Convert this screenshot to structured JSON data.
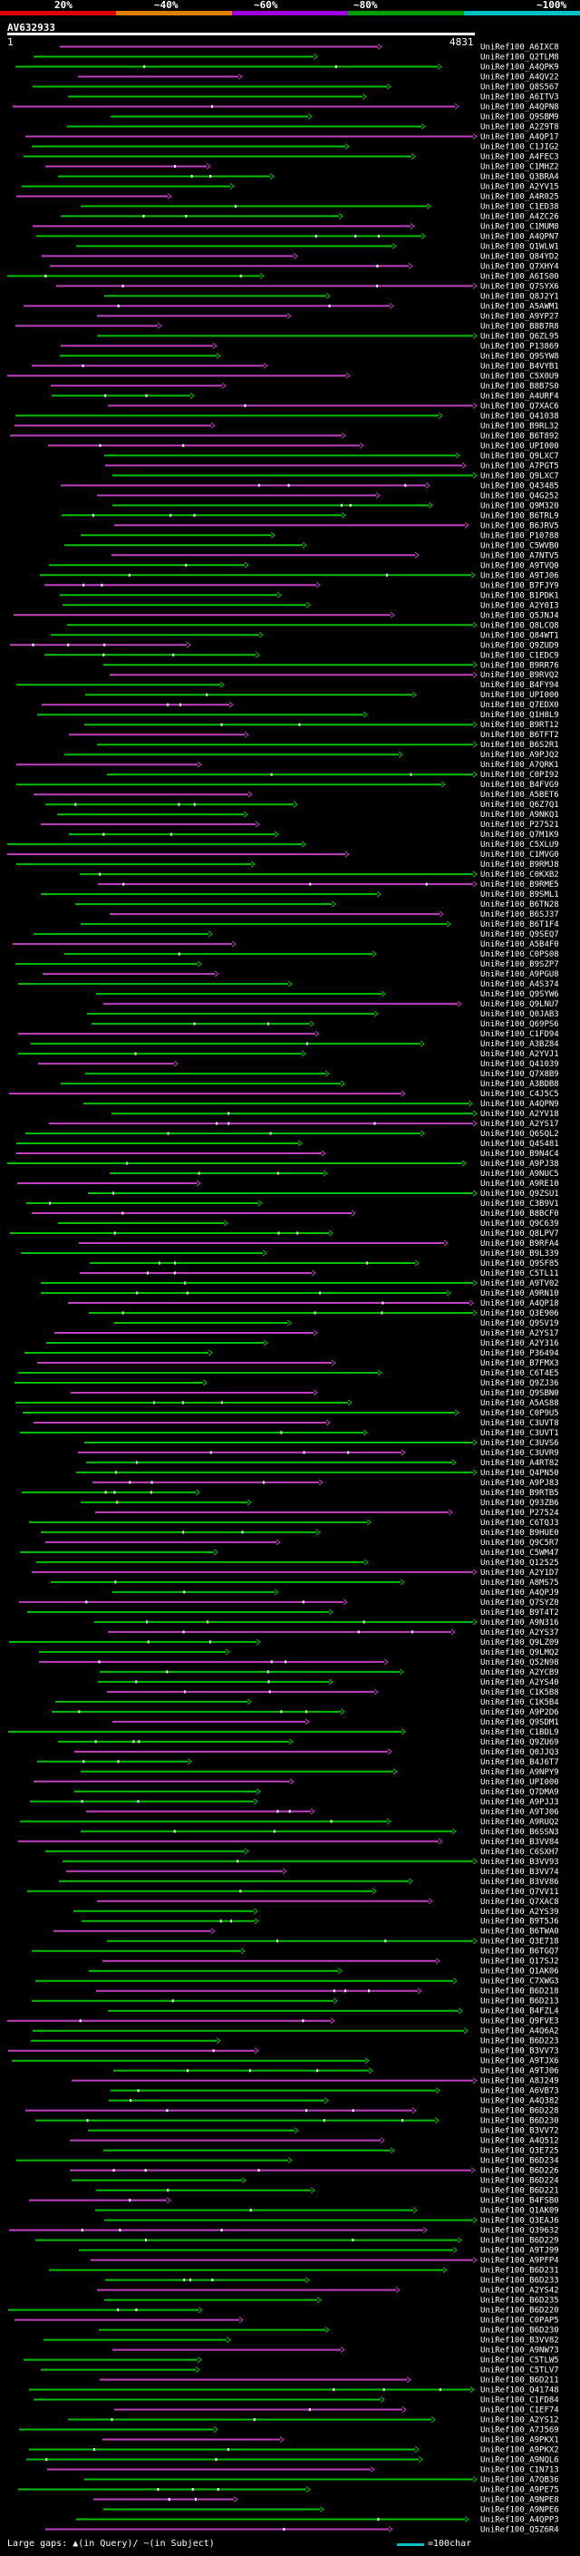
{
  "scale": {
    "labels": [
      "20%",
      "~40%",
      "~60%",
      "~80%",
      "~100%"
    ],
    "colors": [
      "#e00000",
      "#e08000",
      "#a000e0",
      "#00a000",
      "#00c0c0"
    ]
  },
  "query": {
    "id": "AV632933",
    "start": "1",
    "end": "4831"
  },
  "hit_ids": [
    "UniRef100_A6IXC8",
    "UniRef100_Q2TLM8",
    "UniRef100_A4QPK9",
    "UniRef100_A4QV22",
    "UniRef100_Q8S567",
    "UniRef100_A6ITV3",
    "UniRef100_A4QPN8",
    "UniRef100_Q9SBM9",
    "UniRef100_A2Z9T8",
    "UniRef100_A4QP17",
    "UniRef100_C1JIG2",
    "UniRef100_A4FEC3",
    "UniRef100_C1MHZ2",
    "UniRef100_Q3BRA4",
    "UniRef100_A2YV15",
    "UniRef100_A4R025",
    "UniRef100_C1ED38",
    "UniRef100_A4ZC26",
    "UniRef100_C1MUM8",
    "UniRef100_A4QPN7",
    "UniRef100_Q1WLW1",
    "UniRef100_Q84YD2",
    "UniRef100_Q7XHY4",
    "UniRef100_A6IS00",
    "UniRef100_Q7SYX6",
    "UniRef100_Q8J2Y1",
    "UniRef100_A5AWM1",
    "UniRef100_A9YP27",
    "UniRef100_B8B7R8",
    "UniRef100_Q6ZL95",
    "UniRef100_P13869",
    "UniRef100_Q9SYW8",
    "UniRef100_B4VYB1",
    "UniRef100_C5X0U9",
    "UniRef100_B8B7S0",
    "UniRef100_A4URF4",
    "UniRef100_Q7XAC6",
    "UniRef100_Q41038",
    "UniRef100_B9RL32",
    "UniRef100_B6T892",
    "UniRef100_UPI000",
    "UniRef100_Q9LXC7",
    "UniRef100_A7PGT5",
    "UniRef100_Q9LXC7",
    "UniRef100_Q43485",
    "UniRef100_Q4G252",
    "UniRef100_Q9M320",
    "UniRef100_B6TRL9",
    "UniRef100_B6JRV5",
    "UniRef100_P10788",
    "UniRef100_C5WVB0",
    "UniRef100_A7NTV5",
    "UniRef100_A9TVQ0",
    "UniRef100_A9TJ06",
    "UniRef100_B7FJY9",
    "UniRef100_B1PDK1",
    "UniRef100_A2Y0I3",
    "UniRef100_Q5JNJ4",
    "UniRef100_Q8LCQ8",
    "UniRef100_Q84WT1",
    "UniRef100_Q9ZUD9",
    "UniRef100_C1EDC9",
    "UniRef100_B9RR76",
    "UniRef100_B9RVQ2",
    "UniRef100_B4FY94",
    "UniRef100_UPI000",
    "UniRef100_Q7EDX0",
    "UniRef100_Q1H8L9",
    "UniRef100_B9RT12",
    "UniRef100_B6TFT2",
    "UniRef100_B6S2R1",
    "UniRef100_A9PJQ2",
    "UniRef100_A7QRK1",
    "UniRef100_C0PI92",
    "UniRef100_B4FVG9",
    "UniRef100_A5BET6",
    "UniRef100_Q6Z7Q1",
    "UniRef100_A9NKQ1",
    "UniRef100_P27521",
    "UniRef100_Q7M1K9",
    "UniRef100_C5XLU9",
    "UniRef100_C1MVG0",
    "UniRef100_B9RMJ8",
    "UniRef100_C0KXB2",
    "UniRef100_B9RME5",
    "UniRef100_B9SML1",
    "UniRef100_B6TN28",
    "UniRef100_B6SJ37",
    "UniRef100_B6T1F4",
    "UniRef100_Q9SEQ7",
    "UniRef100_A5B4F0",
    "UniRef100_C0PS08",
    "UniRef100_B9SZP7",
    "UniRef100_A9PGU8",
    "UniRef100_A4S374",
    "UniRef100_Q9SYW6",
    "UniRef100_Q9LNU7",
    "UniRef100_Q0JAB3",
    "UniRef100_Q69PS6",
    "UniRef100_C1FD94",
    "UniRef100_A3BZ84",
    "UniRef100_A2YVJ1",
    "UniRef100_Q41039",
    "UniRef100_Q7X8B9",
    "UniRef100_A3BDB8",
    "UniRef100_C4J5C5",
    "UniRef100_A4QPN9",
    "UniRef100_A2YV18",
    "UniRef100_A2YS17",
    "UniRef100_Q6SQL2",
    "UniRef100_Q4S481",
    "UniRef100_B9N4C4",
    "UniRef100_A9PJ38",
    "UniRef100_A9NUC5",
    "UniRef100_A9RE10",
    "UniRef100_Q9ZSU1",
    "UniRef100_C3B9V1",
    "UniRef100_B8BCF0",
    "UniRef100_Q9C639",
    "UniRef100_Q8LPV7",
    "UniRef100_B9RFA4",
    "UniRef100_B9L339",
    "UniRef100_Q9SF85",
    "UniRef100_C5TL11",
    "UniRef100_A9TV02",
    "UniRef100_A9RN10",
    "UniRef100_A4QP18",
    "UniRef100_Q3E906",
    "UniRef100_Q9SV19",
    "UniRef100_A2YS17",
    "UniRef100_A2Y316",
    "UniRef100_P36494",
    "UniRef100_B7FMX3",
    "UniRef100_C6T4E5",
    "UniRef100_Q9ZJ36",
    "UniRef100_Q9SBN0",
    "UniRef100_A5AS88",
    "UniRef100_C0P9U5",
    "UniRef100_C3UVT8",
    "UniRef100_C3UVT1",
    "UniRef100_C3UVS6",
    "UniRef100_C3UVR9",
    "UniRef100_A4RT82",
    "UniRef100_Q4PN50",
    "UniRef100_A9PJ83",
    "UniRef100_B9RTB5",
    "UniRef100_Q93ZB6",
    "UniRef100_P27524",
    "UniRef100_C6TQJ3",
    "UniRef100_B9HUE0",
    "UniRef100_Q9C5R7",
    "UniRef100_C5WM47",
    "UniRef100_Q12525",
    "UniRef100_A2Y1D7",
    "UniRef100_A8MS75",
    "UniRef100_A4QPJ9",
    "UniRef100_Q7SYZ0",
    "UniRef100_B9T4T2",
    "UniRef100_A9N316",
    "UniRef100_A2YS37",
    "UniRef100_Q9LZ09",
    "UniRef100_Q9LMQ2",
    "UniRef100_Q52N98",
    "UniRef100_A2YCB9",
    "UniRef100_A2YS40",
    "UniRef100_C1K5B8",
    "UniRef100_C1K5B4",
    "UniRef100_A9P2D6",
    "UniRef100_Q9SDM1",
    "UniRef100_C1BDL9",
    "UniRef100_Q9ZU69",
    "UniRef100_Q0JJQ3",
    "UniRef100_B4J6T7",
    "UniRef100_A9NPY9",
    "UniRef100_UPI000",
    "UniRef100_Q7DMA9",
    "UniRef100_A9PJJ3",
    "UniRef100_A9TJ06",
    "UniRef100_A9RUQ2",
    "UniRef100_B6SSN3",
    "UniRef100_B3VV84",
    "UniRef100_C6SXH7",
    "UniRef100_B3VV93",
    "UniRef100_B3VV74",
    "UniRef100_B3VV86",
    "UniRef100_Q7VV11",
    "UniRef100_Q7XAC8",
    "UniRef100_A2YS39",
    "UniRef100_B9T5J6",
    "UniRef100_B6TWA0",
    "UniRef100_Q3E718",
    "UniRef100_B6TGQ7",
    "UniRef100_Q17SJ2",
    "UniRef100_Q1AK06",
    "UniRef100_C7XWG3",
    "UniRef100_B6D218",
    "UniRef100_B6D213",
    "UniRef100_B4FZL4",
    "UniRef100_Q9FVE3",
    "UniRef100_A4Q6A2",
    "UniRef100_B6D223",
    "UniRef100_B3VV73",
    "UniRef100_A9TJX6",
    "UniRef100_A9TJ06",
    "UniRef100_A8J249",
    "UniRef100_A6VB73",
    "UniRef100_A4Q382",
    "UniRef100_B6D228",
    "UniRef100_B6D230",
    "UniRef100_B3VV72",
    "UniRef100_A4Q512",
    "UniRef100_Q3E725",
    "UniRef100_B6D234",
    "UniRef100_B6D226",
    "UniRef100_B6D224",
    "UniRef100_B6D221",
    "UniRef100_B4FSB0",
    "UniRef100_Q1AK09",
    "UniRef100_Q3EAJ6",
    "UniRef100_Q39632",
    "UniRef100_B6D229",
    "UniRef100_A9TJ99",
    "UniRef100_A9PFP4",
    "UniRef100_B6D231",
    "UniRef100_B6D233",
    "UniRef100_A2YS42",
    "UniRef100_B6D235",
    "UniRef100_B6D220",
    "UniRef100_C0PAP5",
    "UniRef100_B6D230",
    "UniRef100_B3VV82",
    "UniRef100_A9NW73",
    "UniRef100_C5TLW5",
    "UniRef100_C5TLV7",
    "UniRef100_B6D211",
    "UniRef100_Q41748",
    "UniRef100_C1FD84",
    "UniRef100_C1EF74",
    "UniRef100_A2YS12",
    "UniRef100_A7J569",
    "UniRef100_A9PKX1",
    "UniRef100_A9PKX2",
    "UniRef100_A9NQL6",
    "UniRef100_C1N713",
    "UniRef100_A7QB36",
    "UniRef100_A9PE75",
    "UniRef100_A9NPE8",
    "UniRef100_A9NPE6",
    "UniRef100_A4QPP3",
    "UniRef100_Q5Z6R4"
  ],
  "legend": {
    "text": "Large gaps: ▲(in Query)/ ~(in Subject)",
    "scale_text": "=100char"
  }
}
